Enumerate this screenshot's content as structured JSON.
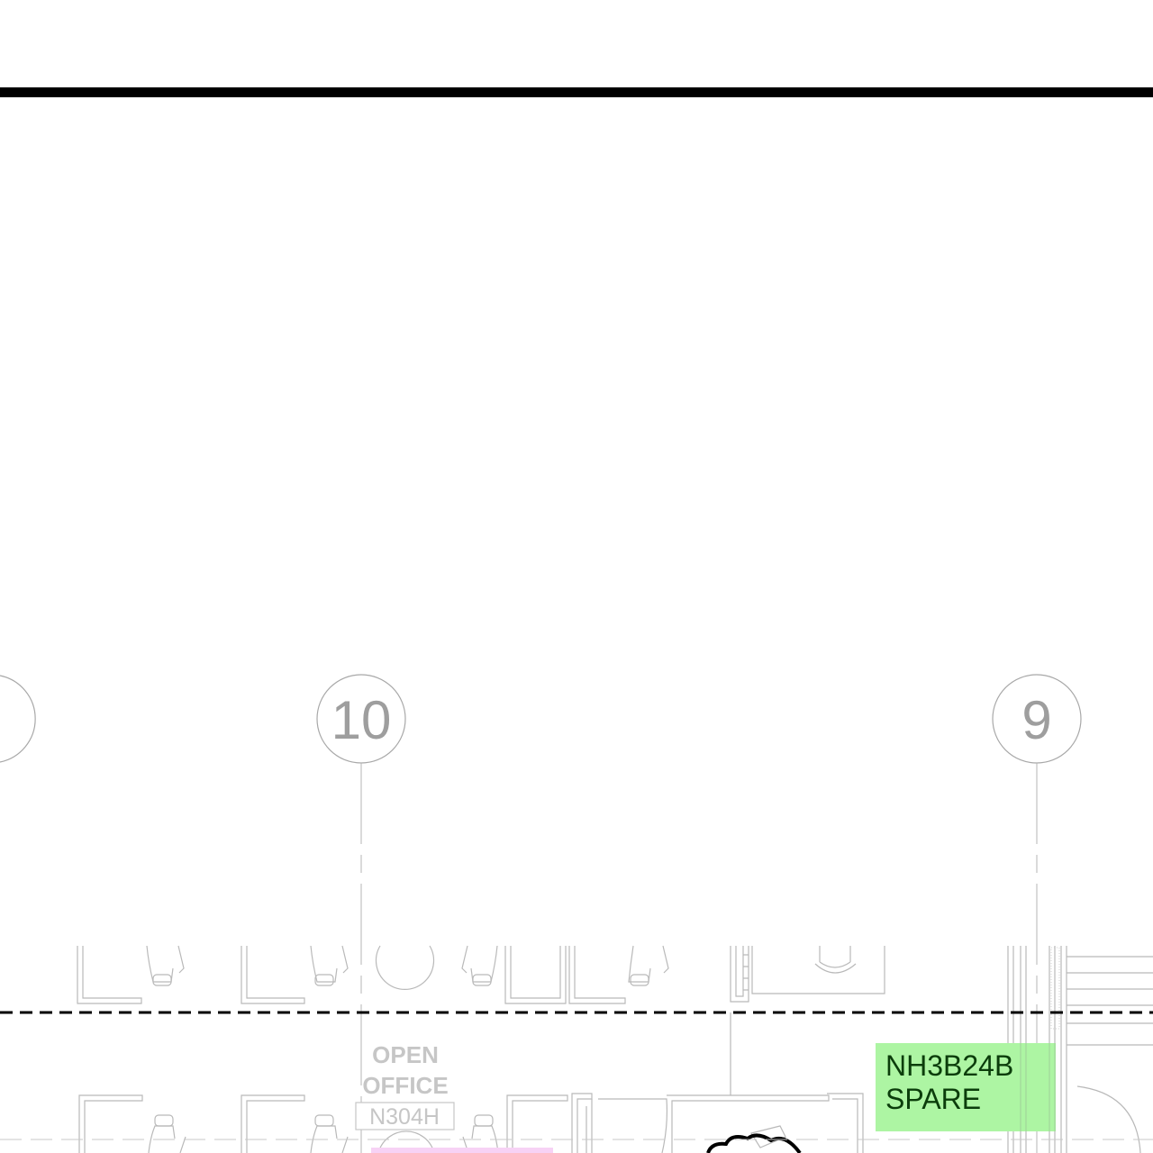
{
  "grid_lines": [
    {
      "label": "10"
    },
    {
      "label": "9"
    }
  ],
  "rooms": [
    {
      "name_line1": "OPEN",
      "name_line2": "OFFICE",
      "number": "N304H"
    }
  ],
  "tags": [
    {
      "line1": "NH3B24B",
      "line2": "SPARE",
      "fill_color": "#adf5a3",
      "text_color": "#0b3d0b"
    }
  ],
  "colors": {
    "linework": "#b9b9b9",
    "bubble_text": "#9e9e9e",
    "room_text": "#c6c6c6",
    "heavy_line": "#000000",
    "accent_pink": "#f7d2f5"
  }
}
